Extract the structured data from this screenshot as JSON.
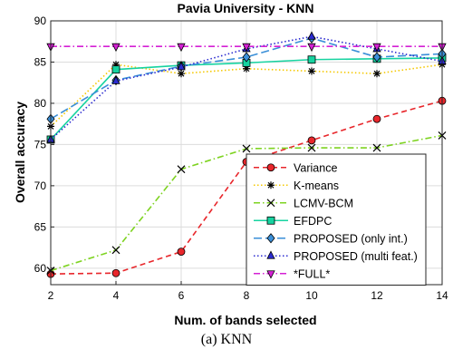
{
  "caption": "(a) KNN",
  "chart_data": {
    "type": "line",
    "title": "Pavia University - KNN",
    "xlabel": "Num. of bands selected",
    "ylabel": "Overall accuracy",
    "x": [
      2,
      4,
      6,
      8,
      10,
      12,
      14
    ],
    "xlim": [
      2,
      14
    ],
    "ylim": [
      58,
      90
    ],
    "xticks": [
      2,
      4,
      6,
      8,
      10,
      12,
      14
    ],
    "yticks": [
      60,
      65,
      70,
      75,
      80,
      85,
      90
    ],
    "grid": true,
    "legend_position": "bottom-right",
    "series": [
      {
        "name": "Variance",
        "color": "#e8262b",
        "dash": "dashed",
        "marker": "circle",
        "values": [
          59.3,
          59.4,
          62.0,
          72.9,
          75.5,
          78.1,
          80.3
        ]
      },
      {
        "name": "K-means",
        "color": "#f5c800",
        "dash": "dotted",
        "marker": "asterisk",
        "values": [
          77.2,
          84.7,
          83.6,
          84.2,
          83.9,
          83.6,
          84.7
        ]
      },
      {
        "name": "LCMV-BCM",
        "color": "#7ed321",
        "dash": "dashdot",
        "marker": "x",
        "values": [
          59.7,
          62.2,
          72.0,
          74.5,
          74.6,
          74.6,
          76.1
        ]
      },
      {
        "name": "EFDPC",
        "color": "#16d3a0",
        "dash": "solid",
        "marker": "square",
        "values": [
          75.6,
          84.1,
          84.6,
          84.9,
          85.3,
          85.4,
          85.5
        ]
      },
      {
        "name": "PROPOSED (only int.)",
        "color": "#3a8fd8",
        "dash": "longdash",
        "marker": "diamond",
        "values": [
          78.1,
          82.8,
          84.5,
          85.6,
          87.9,
          85.6,
          86.0
        ]
      },
      {
        "name": "PROPOSED (multi feat.)",
        "color": "#2b2bd0",
        "dash": "dotted",
        "marker": "triangle-up",
        "values": [
          75.6,
          82.7,
          84.4,
          86.6,
          88.1,
          86.6,
          85.1
        ]
      },
      {
        "name": "*FULL*",
        "color": "#d420d4",
        "dash": "dashdot",
        "marker": "triangle-down",
        "values": [
          86.9,
          86.9,
          86.9,
          86.9,
          86.9,
          86.9,
          86.9
        ]
      }
    ]
  }
}
